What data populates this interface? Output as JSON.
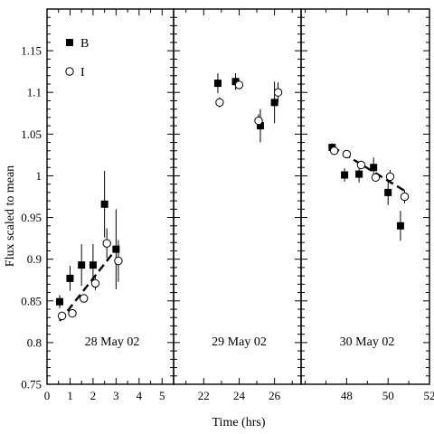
{
  "chart_data": {
    "type": "scatter",
    "ylabel": "Flux scaled to mean",
    "xlabel": "Time (hrs)",
    "ylim": [
      0.75,
      1.2
    ],
    "yticks": [
      0.75,
      0.8,
      0.85,
      0.9,
      0.95,
      1,
      1.05,
      1.1,
      1.15
    ],
    "ytick_labels": [
      "0.75",
      "0.8",
      "0.85",
      "0.9",
      "0.95",
      "1",
      "1.05",
      "1.1",
      "1.15"
    ],
    "legend": {
      "placement": "top-left",
      "entries": [
        {
          "label": "B",
          "marker": "filled-square"
        },
        {
          "label": "I",
          "marker": "open-circle"
        }
      ]
    },
    "panels": [
      {
        "label": "28 May 02",
        "xlim": [
          0,
          5.5
        ],
        "xticks": [
          0,
          1,
          2,
          3,
          4,
          5
        ],
        "xtick_labels": [
          "0",
          "1",
          "2",
          "3",
          "4",
          "5"
        ],
        "series": [
          {
            "name": "B",
            "marker": "filled-square",
            "x": [
              0.55,
              1.0,
              1.5,
              2.0,
              2.5,
              3.0
            ],
            "y": [
              0.849,
              0.877,
              0.893,
              0.893,
              0.966,
              0.912
            ],
            "err": [
              0.008,
              0.015,
              0.025,
              0.025,
              0.04,
              0.048
            ]
          },
          {
            "name": "I",
            "marker": "open-circle",
            "x": [
              0.65,
              1.1,
              1.6,
              2.1,
              2.6,
              3.1
            ],
            "y": [
              0.832,
              0.835,
              0.853,
              0.871,
              0.919,
              0.898
            ],
            "err": [
              0.004,
              0.004,
              0.005,
              0.008,
              0.018,
              0.025
            ]
          }
        ],
        "fit": {
          "x": [
            0.55,
            3.0
          ],
          "y": [
            0.826,
            0.912
          ]
        }
      },
      {
        "label": "29 May 02",
        "xlim": [
          20.3,
          27.5
        ],
        "xticks": [
          22,
          24,
          26
        ],
        "xtick_labels": [
          "22",
          "24",
          "26"
        ],
        "series": [
          {
            "name": "B",
            "marker": "filled-square",
            "x": [
              22.8,
              23.8,
              25.2,
              26.0
            ],
            "y": [
              1.111,
              1.113,
              1.06,
              1.088
            ],
            "err": [
              0.012,
              0.01,
              0.02,
              0.025
            ]
          },
          {
            "name": "I",
            "marker": "open-circle",
            "x": [
              22.9,
              24.0,
              25.1,
              26.2
            ],
            "y": [
              1.088,
              1.109,
              1.066,
              1.1
            ],
            "err": [
              0.006,
              0.005,
              0.008,
              0.012
            ]
          }
        ]
      },
      {
        "label": "30 May 02",
        "xlim": [
          45.8,
          52
        ],
        "xticks": [
          48,
          50,
          52
        ],
        "xtick_labels": [
          "48",
          "50",
          "52"
        ],
        "series": [
          {
            "name": "B",
            "marker": "filled-square",
            "x": [
              47.3,
              47.9,
              48.6,
              49.3,
              50.0,
              50.6
            ],
            "y": [
              1.034,
              1.001,
              1.002,
              1.01,
              0.98,
              0.94
            ],
            "err": [
              0.005,
              0.008,
              0.01,
              0.012,
              0.015,
              0.018
            ]
          },
          {
            "name": "I",
            "marker": "open-circle",
            "x": [
              47.4,
              48.0,
              48.7,
              49.4,
              50.1,
              50.8
            ],
            "y": [
              1.03,
              1.026,
              1.013,
              0.998,
              0.999,
              0.975
            ],
            "err": [
              0.005,
              0.004,
              0.005,
              0.004,
              0.008,
              0.008
            ]
          }
        ],
        "fit": {
          "x": [
            47.3,
            50.8
          ],
          "y": [
            1.035,
            0.982
          ]
        }
      }
    ]
  }
}
